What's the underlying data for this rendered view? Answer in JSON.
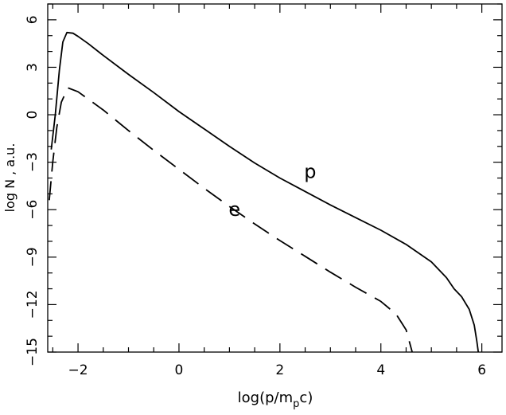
{
  "chart_data": {
    "type": "line",
    "title": "",
    "xlabel": "log(p/m",
    "xlabel_sub": "p",
    "xlabel_tail": "c)",
    "ylabel": "log N , a.u.",
    "xlim": [
      -2.6,
      6.4
    ],
    "ylim": [
      -15,
      7
    ],
    "x_ticks": [
      -2,
      0,
      2,
      4,
      6
    ],
    "x_tick_labels": [
      "−2",
      "0",
      "2",
      "4",
      "6"
    ],
    "y_ticks": [
      -15,
      -12,
      -9,
      -6,
      -3,
      0,
      3,
      6
    ],
    "y_tick_labels": [
      "−15",
      "−12",
      "−9",
      "−6",
      "−3",
      "0",
      "3",
      "6"
    ],
    "grid": false,
    "legend": "none",
    "series": [
      {
        "name": "p",
        "style": "solid",
        "color": "#000000",
        "points": [
          [
            -2.53,
            -2.2
          ],
          [
            -2.45,
            0.0
          ],
          [
            -2.37,
            2.8
          ],
          [
            -2.3,
            4.6
          ],
          [
            -2.22,
            5.2
          ],
          [
            -2.1,
            5.15
          ],
          [
            -2.0,
            4.95
          ],
          [
            -1.8,
            4.5
          ],
          [
            -1.5,
            3.75
          ],
          [
            -1.0,
            2.55
          ],
          [
            -0.5,
            1.4
          ],
          [
            0.0,
            0.2
          ],
          [
            0.5,
            -0.9
          ],
          [
            1.0,
            -2.0
          ],
          [
            1.5,
            -3.05
          ],
          [
            2.0,
            -4.0
          ],
          [
            2.5,
            -4.85
          ],
          [
            3.0,
            -5.7
          ],
          [
            3.5,
            -6.5
          ],
          [
            4.0,
            -7.3
          ],
          [
            4.5,
            -8.2
          ],
          [
            5.0,
            -9.3
          ],
          [
            5.3,
            -10.3
          ],
          [
            5.45,
            -11.0
          ],
          [
            5.6,
            -11.5
          ],
          [
            5.75,
            -12.3
          ],
          [
            5.85,
            -13.3
          ],
          [
            5.9,
            -14.3
          ],
          [
            5.93,
            -15.0
          ]
        ],
        "label": {
          "text": "p",
          "x": 2.6,
          "y": -4.0
        }
      },
      {
        "name": "e",
        "style": "dashed",
        "color": "#000000",
        "points": [
          [
            -2.57,
            -5.4
          ],
          [
            -2.5,
            -3.0
          ],
          [
            -2.42,
            -0.8
          ],
          [
            -2.33,
            0.8
          ],
          [
            -2.2,
            1.7
          ],
          [
            -2.0,
            1.45
          ],
          [
            -1.5,
            0.3
          ],
          [
            -1.0,
            -1.0
          ],
          [
            -0.5,
            -2.25
          ],
          [
            0.0,
            -3.45
          ],
          [
            0.5,
            -4.65
          ],
          [
            1.0,
            -5.8
          ],
          [
            1.5,
            -6.9
          ],
          [
            2.0,
            -7.95
          ],
          [
            2.5,
            -8.95
          ],
          [
            3.0,
            -9.95
          ],
          [
            3.5,
            -10.9
          ],
          [
            4.0,
            -11.8
          ],
          [
            4.3,
            -12.6
          ],
          [
            4.5,
            -13.6
          ],
          [
            4.62,
            -15.0
          ]
        ],
        "label": {
          "text": "e",
          "x": 1.1,
          "y": -6.4
        }
      }
    ]
  }
}
